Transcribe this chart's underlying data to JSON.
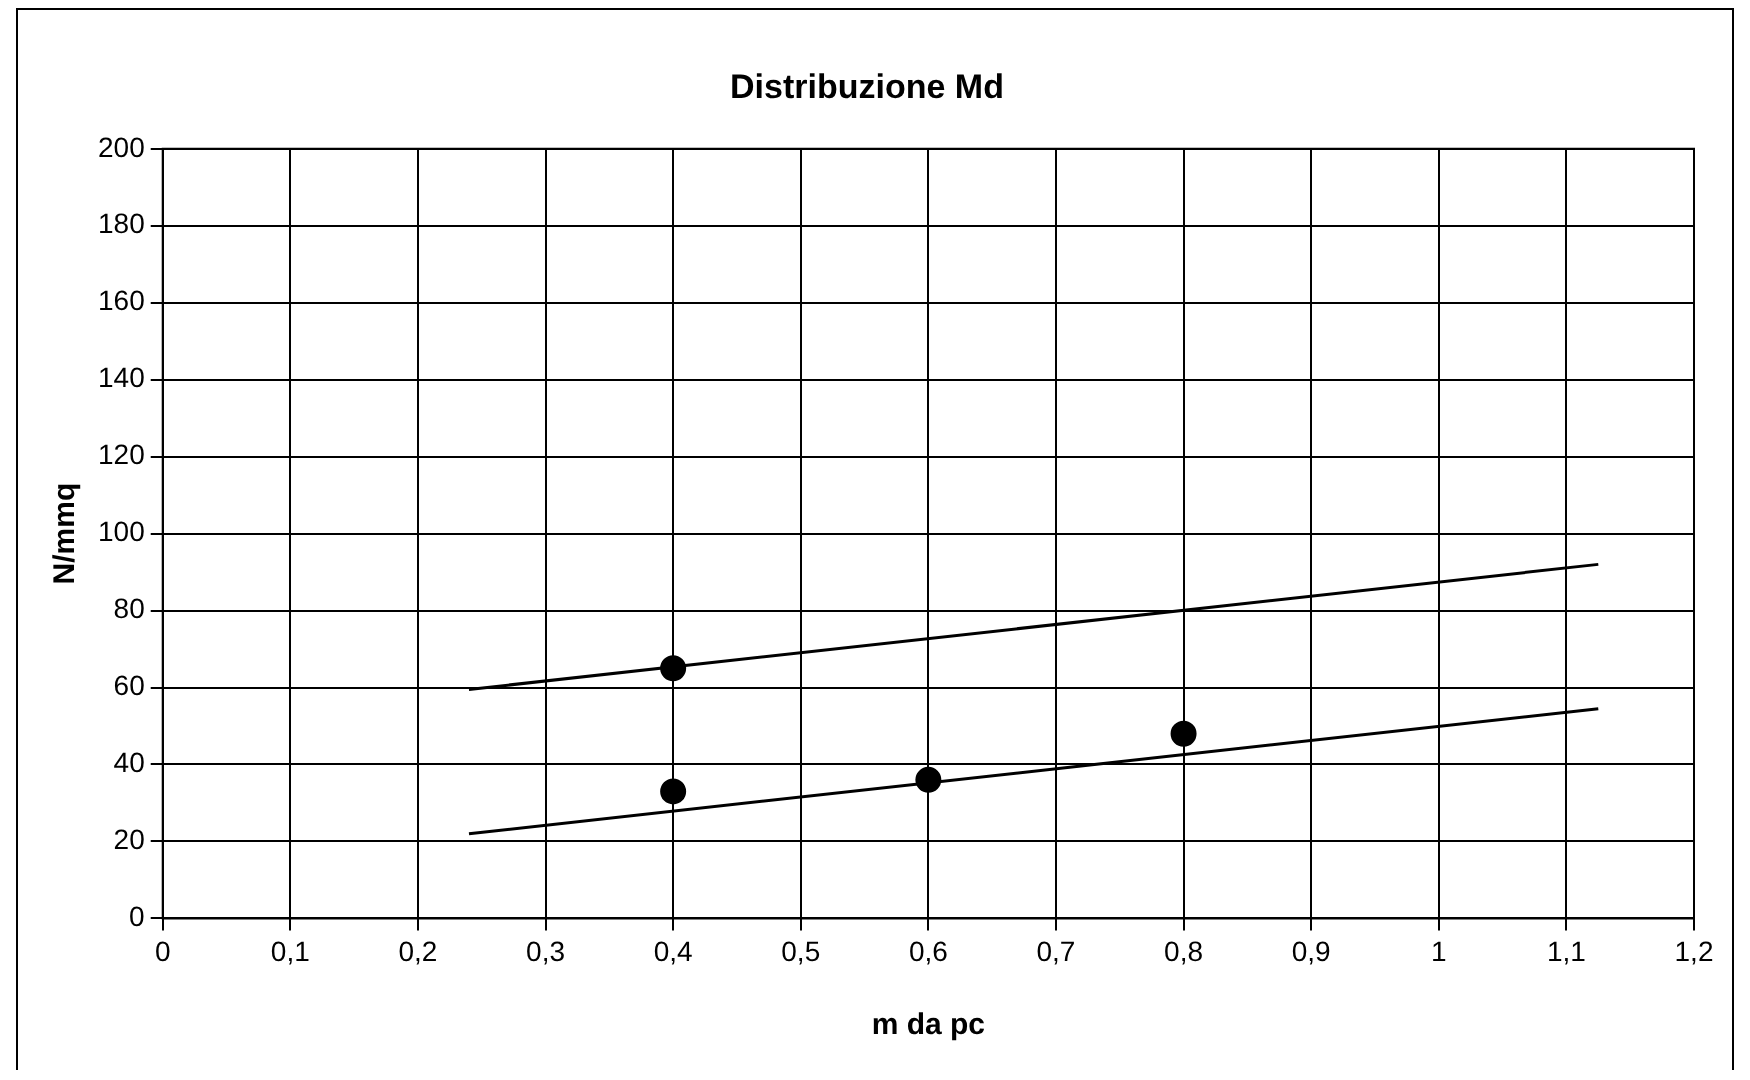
{
  "chart_data": {
    "type": "scatter",
    "title": "Distribuzione Md",
    "xlabel": "m da pc",
    "ylabel": "N/mmq",
    "xlim": [
      0,
      1.2
    ],
    "xticks": [
      0,
      {
        "value": 0.1,
        "label": "0,1"
      },
      {
        "value": 0.2,
        "label": "0,2"
      },
      {
        "value": 0.3,
        "label": "0,3"
      },
      {
        "value": 0.4,
        "label": "0,4"
      },
      {
        "value": 0.5,
        "label": "0,5"
      },
      {
        "value": 0.6,
        "label": "0,6"
      },
      {
        "value": 0.7,
        "label": "0,7"
      },
      {
        "value": 0.8,
        "label": "0,8"
      },
      {
        "value": 0.9,
        "label": "0,9"
      },
      1,
      {
        "value": 1.1,
        "label": "1,1"
      },
      {
        "value": 1.2,
        "label": "1,2"
      }
    ],
    "ylim": [
      0,
      200
    ],
    "yticks": [
      0,
      20,
      40,
      60,
      80,
      100,
      120,
      140,
      160,
      180,
      200
    ],
    "grid": true,
    "legend": false,
    "series": [
      {
        "type": "line",
        "color": "#000000",
        "x": [
          0.24,
          1.125
        ],
        "values": [
          59.5,
          92
        ],
        "marker": "none"
      },
      {
        "type": "line",
        "color": "#000000",
        "x": [
          0.24,
          1.125
        ],
        "values": [
          22,
          54.5
        ],
        "marker": "none"
      },
      {
        "color": "#000000",
        "x": [
          0.4,
          0.4,
          0.6,
          0.8
        ],
        "values": [
          65,
          33,
          36,
          48
        ],
        "marker": "circle"
      }
    ]
  }
}
